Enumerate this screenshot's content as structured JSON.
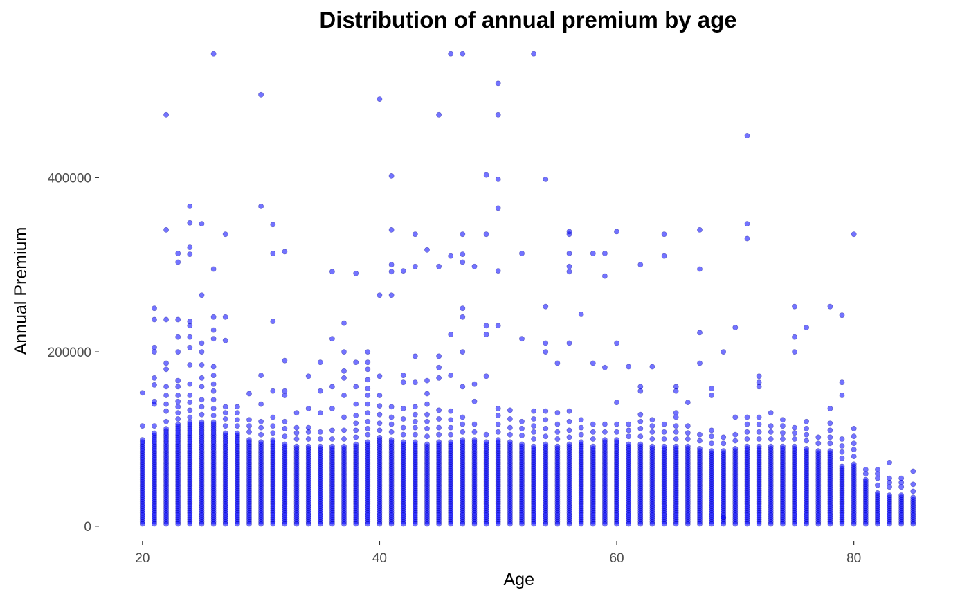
{
  "chart_data": {
    "type": "scatter",
    "title": "Distribution of annual premium by age",
    "xlabel": "Age",
    "ylabel": "Annual Premium",
    "xlim": [
      17.5,
      86.5
    ],
    "ylim": [
      -20000,
      560000
    ],
    "xticks": [
      20,
      40,
      60,
      80
    ],
    "yticks": [
      0,
      200000,
      400000
    ],
    "x_tick_labels": [
      "20",
      "40",
      "60",
      "80"
    ],
    "y_tick_labels": [
      "0",
      "200000",
      "400000"
    ],
    "grid": false,
    "marker_color": "#0000ff",
    "marker_alpha": 0.55,
    "baseline_value": 2630,
    "columns": [
      {
        "age": 20,
        "top": 100000,
        "sparse": [
          115000,
          153000
        ]
      },
      {
        "age": 21,
        "top": 108000,
        "sparse": [
          115000,
          140000,
          143000,
          162000,
          170000,
          200000,
          205000,
          237000,
          250000
        ]
      },
      {
        "age": 22,
        "top": 112000,
        "sparse": [
          120000,
          132000,
          140000,
          150000,
          160000,
          180000,
          187000,
          237000,
          340000,
          472000
        ]
      },
      {
        "age": 23,
        "top": 117000,
        "sparse": [
          123000,
          130000,
          137000,
          143000,
          150000,
          160000,
          167000,
          200000,
          217000,
          237000,
          303000,
          313000
        ]
      },
      {
        "age": 24,
        "top": 120000,
        "sparse": [
          125000,
          133000,
          142000,
          150000,
          163000,
          185000,
          205000,
          217000,
          230000,
          235000,
          312000,
          320000,
          348000,
          367000
        ]
      },
      {
        "age": 25,
        "top": 120000,
        "sparse": [
          128000,
          137000,
          145000,
          160000,
          170000,
          185000,
          200000,
          210000,
          265000,
          347000
        ]
      },
      {
        "age": 26,
        "top": 120000,
        "sparse": [
          127000,
          135000,
          145000,
          155000,
          163000,
          173000,
          183000,
          215000,
          225000,
          240000,
          295000,
          542000
        ]
      },
      {
        "age": 27,
        "top": 107000,
        "sparse": [
          115000,
          123000,
          130000,
          137000,
          213000,
          240000,
          335000
        ]
      },
      {
        "age": 28,
        "top": 108000,
        "sparse": [
          115000,
          122000,
          130000,
          137000
        ]
      },
      {
        "age": 29,
        "top": 100000,
        "sparse": [
          108000,
          115000,
          122000,
          152000
        ]
      },
      {
        "age": 30,
        "top": 98000,
        "sparse": [
          105000,
          113000,
          120000,
          140000,
          173000,
          367000,
          495000
        ]
      },
      {
        "age": 31,
        "top": 100000,
        "sparse": [
          107000,
          115000,
          125000,
          155000,
          235000,
          313000,
          346000
        ]
      },
      {
        "age": 32,
        "top": 95000,
        "sparse": [
          103000,
          112000,
          120000,
          150000,
          155000,
          190000,
          315000
        ]
      },
      {
        "age": 33,
        "top": 92000,
        "sparse": [
          100000,
          107000,
          113000,
          130000
        ]
      },
      {
        "age": 34,
        "top": 93000,
        "sparse": [
          100000,
          108000,
          113000,
          135000,
          172000
        ]
      },
      {
        "age": 35,
        "top": 93000,
        "sparse": [
          100000,
          108000,
          130000,
          155000,
          188000
        ]
      },
      {
        "age": 36,
        "top": 93000,
        "sparse": [
          100000,
          110000,
          135000,
          160000,
          215000,
          292000
        ]
      },
      {
        "age": 37,
        "top": 93000,
        "sparse": [
          100000,
          110000,
          125000,
          150000,
          170000,
          178000,
          200000,
          233000
        ]
      },
      {
        "age": 38,
        "top": 95000,
        "sparse": [
          102000,
          110000,
          118000,
          127000,
          140000,
          160000,
          188000,
          290000
        ]
      },
      {
        "age": 39,
        "top": 97000,
        "sparse": [
          105000,
          112000,
          120000,
          130000,
          140000,
          150000,
          158000,
          168000,
          180000,
          188000,
          200000
        ]
      },
      {
        "age": 40,
        "top": 103000,
        "sparse": [
          110000,
          118000,
          128000,
          138000,
          150000,
          172000,
          265000,
          490000
        ]
      },
      {
        "age": 41,
        "top": 100000,
        "sparse": [
          108000,
          117000,
          125000,
          137000,
          265000,
          292000,
          300000,
          340000,
          402000
        ]
      },
      {
        "age": 42,
        "top": 98000,
        "sparse": [
          105000,
          113000,
          123000,
          135000,
          165000,
          173000,
          293000
        ]
      },
      {
        "age": 43,
        "top": 97000,
        "sparse": [
          105000,
          113000,
          120000,
          128000,
          137000,
          165000,
          195000,
          298000,
          335000
        ]
      },
      {
        "age": 44,
        "top": 95000,
        "sparse": [
          103000,
          112000,
          120000,
          128000,
          140000,
          152000,
          167000,
          317000
        ]
      },
      {
        "age": 45,
        "top": 97000,
        "sparse": [
          105000,
          113000,
          123000,
          133000,
          170000,
          182000,
          195000,
          298000,
          472000
        ]
      },
      {
        "age": 46,
        "top": 98000,
        "sparse": [
          105000,
          113000,
          122000,
          132000,
          173000,
          220000,
          310000,
          542000
        ]
      },
      {
        "age": 47,
        "top": 100000,
        "sparse": [
          108000,
          117000,
          125000,
          160000,
          200000,
          240000,
          250000,
          303000,
          312000,
          335000,
          542000
        ]
      },
      {
        "age": 48,
        "top": 100000,
        "sparse": [
          108000,
          117000,
          143000,
          163000,
          298000
        ]
      },
      {
        "age": 49,
        "top": 98000,
        "sparse": [
          105000,
          172000,
          220000,
          230000,
          335000,
          403000
        ]
      },
      {
        "age": 50,
        "top": 100000,
        "sparse": [
          108000,
          117000,
          127000,
          135000,
          230000,
          293000,
          365000,
          398000,
          472000,
          508000
        ]
      },
      {
        "age": 51,
        "top": 98000,
        "sparse": [
          105000,
          113000,
          123000,
          133000
        ]
      },
      {
        "age": 52,
        "top": 96000,
        "sparse": [
          104000,
          112000,
          120000,
          215000,
          313000
        ]
      },
      {
        "age": 53,
        "top": 93000,
        "sparse": [
          100000,
          108000,
          115000,
          123000,
          132000,
          542000
        ]
      },
      {
        "age": 54,
        "top": 95000,
        "sparse": [
          103000,
          112000,
          122000,
          132000,
          200000,
          210000,
          252000,
          398000
        ]
      },
      {
        "age": 55,
        "top": 93000,
        "sparse": [
          100000,
          108000,
          117000,
          130000,
          187000
        ]
      },
      {
        "age": 56,
        "top": 95000,
        "sparse": [
          102000,
          110000,
          120000,
          132000,
          210000,
          292000,
          298000,
          313000,
          335000,
          338000
        ]
      },
      {
        "age": 57,
        "top": 97000,
        "sparse": [
          105000,
          113000,
          122000,
          243000
        ]
      },
      {
        "age": 58,
        "top": 93000,
        "sparse": [
          100000,
          108000,
          117000,
          187000,
          313000
        ]
      },
      {
        "age": 59,
        "top": 100000,
        "sparse": [
          108000,
          117000,
          182000,
          287000,
          313000
        ]
      },
      {
        "age": 60,
        "top": 100000,
        "sparse": [
          108000,
          117000,
          142000,
          210000,
          338000
        ]
      },
      {
        "age": 61,
        "top": 95000,
        "sparse": [
          103000,
          110000,
          117000,
          183000
        ]
      },
      {
        "age": 62,
        "top": 95000,
        "sparse": [
          103000,
          112000,
          120000,
          128000,
          155000,
          160000,
          300000
        ]
      },
      {
        "age": 63,
        "top": 93000,
        "sparse": [
          100000,
          108000,
          115000,
          122000,
          183000
        ]
      },
      {
        "age": 64,
        "top": 93000,
        "sparse": [
          100000,
          108000,
          117000,
          310000,
          335000
        ]
      },
      {
        "age": 65,
        "top": 92000,
        "sparse": [
          100000,
          108000,
          115000,
          125000,
          130000,
          155000,
          160000
        ]
      },
      {
        "age": 66,
        "top": 92000,
        "sparse": [
          100000,
          107000,
          115000,
          142000
        ]
      },
      {
        "age": 67,
        "top": 90000,
        "sparse": [
          98000,
          105000,
          187000,
          222000,
          295000,
          340000
        ]
      },
      {
        "age": 68,
        "top": 88000,
        "sparse": [
          95000,
          103000,
          110000,
          150000,
          158000
        ]
      },
      {
        "age": 69,
        "top": 88000,
        "sparse": [
          95000,
          102000,
          10000,
          200000
        ]
      },
      {
        "age": 70,
        "top": 90000,
        "sparse": [
          98000,
          105000,
          125000,
          228000
        ]
      },
      {
        "age": 71,
        "top": 93000,
        "sparse": [
          100000,
          108000,
          117000,
          125000,
          330000,
          347000,
          448000
        ]
      },
      {
        "age": 72,
        "top": 93000,
        "sparse": [
          100000,
          108000,
          117000,
          125000,
          160000,
          165000,
          172000
        ]
      },
      {
        "age": 73,
        "top": 93000,
        "sparse": [
          100000,
          108000,
          115000,
          130000
        ]
      },
      {
        "age": 74,
        "top": 92000,
        "sparse": [
          100000,
          107000,
          115000,
          122000
        ]
      },
      {
        "age": 75,
        "top": 92000,
        "sparse": [
          100000,
          107000,
          113000,
          200000,
          217000,
          252000
        ]
      },
      {
        "age": 76,
        "top": 90000,
        "sparse": [
          98000,
          105000,
          112000,
          120000,
          228000
        ]
      },
      {
        "age": 77,
        "top": 88000,
        "sparse": [
          95000,
          102000
        ]
      },
      {
        "age": 78,
        "top": 88000,
        "sparse": [
          95000,
          102000,
          110000,
          118000,
          135000,
          252000
        ]
      },
      {
        "age": 79,
        "top": 70000,
        "sparse": [
          78000,
          85000,
          92000,
          100000,
          150000,
          165000,
          242000
        ]
      },
      {
        "age": 80,
        "top": 72000,
        "sparse": [
          80000,
          88000,
          95000,
          103000,
          112000,
          335000
        ]
      },
      {
        "age": 81,
        "top": 55000,
        "sparse": [
          60000,
          65000
        ]
      },
      {
        "age": 82,
        "top": 40000,
        "sparse": [
          47000,
          55000,
          60000,
          65000
        ]
      },
      {
        "age": 83,
        "top": 38000,
        "sparse": [
          45000,
          50000,
          55000,
          73000
        ]
      },
      {
        "age": 84,
        "top": 38000,
        "sparse": [
          45000,
          50000,
          55000
        ]
      },
      {
        "age": 85,
        "top": 35000,
        "sparse": [
          40000,
          48000,
          63000
        ]
      }
    ]
  }
}
